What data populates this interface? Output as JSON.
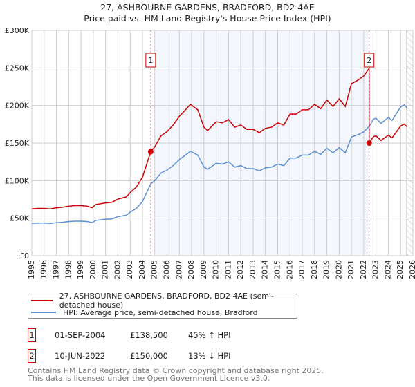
{
  "chart_data": {
    "type": "line",
    "title": "27, ASHBOURNE GARDENS, BRADFORD, BD2 4AE",
    "subtitle": "Price paid vs. HM Land Registry's House Price Index (HPI)",
    "xlabel": "",
    "ylabel": "",
    "xlim": [
      1995,
      2026
    ],
    "ylim": [
      0,
      300000
    ],
    "grid": true,
    "x_ticks": [
      "1995",
      "1996",
      "1997",
      "1998",
      "1999",
      "2000",
      "2001",
      "2002",
      "2003",
      "2004",
      "2005",
      "2006",
      "2007",
      "2008",
      "2009",
      "2010",
      "2011",
      "2012",
      "2013",
      "2014",
      "2015",
      "2016",
      "2017",
      "2018",
      "2019",
      "2020",
      "2021",
      "2022",
      "2023",
      "2024",
      "2025",
      "2026"
    ],
    "y_ticks": [
      {
        "value": 0,
        "label": "£0"
      },
      {
        "value": 50000,
        "label": "£50K"
      },
      {
        "value": 100000,
        "label": "£100K"
      },
      {
        "value": 150000,
        "label": "£150K"
      },
      {
        "value": 200000,
        "label": "£200K"
      },
      {
        "value": 250000,
        "label": "£250K"
      },
      {
        "value": 300000,
        "label": "£300K"
      }
    ],
    "shaded_range": [
      2005,
      2022.44
    ],
    "forecast_hatch_from": 2025.5,
    "hpi_series": {
      "name": "HPI: Average price, semi-detached house, Bradford",
      "color": "#5b8fd4",
      "x": [
        1995,
        1995.5,
        1996,
        1996.5,
        1997,
        1997.5,
        1998,
        1998.5,
        1999,
        1999.5,
        1999.9,
        2000.2,
        2001,
        2001.5,
        2002,
        2002.7,
        2003,
        2003.5,
        2004,
        2004.67,
        2005,
        2005.5,
        2006,
        2006.5,
        2007,
        2007.5,
        2007.9,
        2008.5,
        2009,
        2009.3,
        2010,
        2010.5,
        2011,
        2011.5,
        2012,
        2012.5,
        2013,
        2013.5,
        2014,
        2014.5,
        2015,
        2015.5,
        2016,
        2016.5,
        2017,
        2017.5,
        2018,
        2018.5,
        2019,
        2019.5,
        2020,
        2020.5,
        2021,
        2021.5,
        2022,
        2022.44,
        2022.8,
        2023,
        2023.4,
        2024,
        2024.3,
        2025,
        2025.3,
        2025.5
      ],
      "y": [
        43000,
        43500,
        43500,
        43000,
        44000,
        44500,
        45500,
        46000,
        46000,
        45500,
        44000,
        47000,
        48500,
        49000,
        52000,
        54000,
        58000,
        63000,
        72000,
        95500,
        100000,
        110000,
        114000,
        120000,
        128000,
        134000,
        139000,
        134000,
        118000,
        115000,
        123000,
        122000,
        125000,
        118000,
        120000,
        116000,
        116000,
        113000,
        117000,
        118000,
        122000,
        120000,
        130000,
        130000,
        134000,
        134000,
        139000,
        135000,
        143000,
        137000,
        144000,
        137000,
        158000,
        161000,
        165000,
        172000,
        182000,
        183000,
        176000,
        184000,
        180000,
        198000,
        201000,
        197000
      ]
    },
    "property_series": {
      "name": "27, ASHBOURNE GARDENS, BRADFORD, BD2 4AE (semi-detached house)",
      "color": "#cc0000",
      "derived_from_hpi": true,
      "ratio_before_sale_2": 1.45,
      "ratio_after_sale_2": 0.872
    },
    "sales": [
      {
        "id": "1",
        "x": 2004.67,
        "price": 138500
      },
      {
        "id": "2",
        "x": 2022.44,
        "price": 150000
      }
    ]
  },
  "legend": {
    "property": "27, ASHBOURNE GARDENS, BRADFORD, BD2 4AE (semi-detached house)",
    "hpi": "HPI: Average price, semi-detached house, Bradford"
  },
  "transactions": [
    {
      "id": "1",
      "date": "01-SEP-2004",
      "price": "£138,500",
      "hpi": "45% ↑ HPI"
    },
    {
      "id": "2",
      "date": "10-JUN-2022",
      "price": "£150,000",
      "hpi": "13% ↓ HPI"
    }
  ],
  "footer": {
    "line1": "Contains HM Land Registry data © Crown copyright and database right 2025.",
    "line2": "This data is licensed under the Open Government Licence v3.0."
  }
}
